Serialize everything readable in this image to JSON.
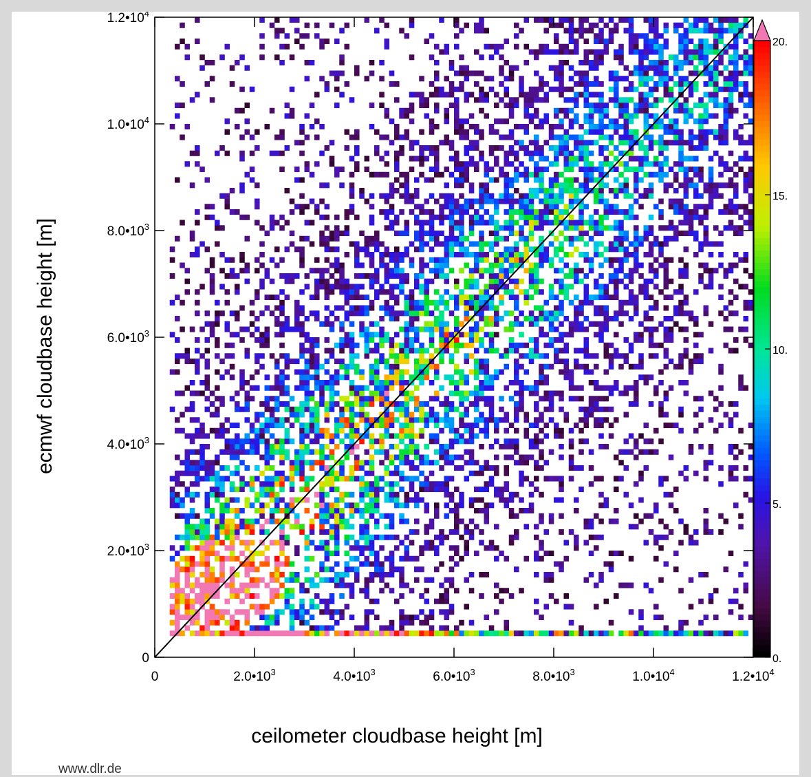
{
  "chart_data": {
    "type": "heatmap",
    "title": "",
    "xlabel": "ceilometer cloudbase height [m]",
    "ylabel": "ecmwf cloudbase height [m]",
    "xlim": [
      0,
      12000
    ],
    "ylim": [
      0,
      12000
    ],
    "x_ticks": [
      {
        "value": 0,
        "label": "0",
        "mant": "",
        "exp": ""
      },
      {
        "value": 2000,
        "label": "2.0•10³",
        "mant": "2.0•10",
        "exp": "3"
      },
      {
        "value": 4000,
        "label": "4.0•10³",
        "mant": "4.0•10",
        "exp": "3"
      },
      {
        "value": 6000,
        "label": "6.0•10³",
        "mant": "6.0•10",
        "exp": "3"
      },
      {
        "value": 8000,
        "label": "8.0•10³",
        "mant": "8.0•10",
        "exp": "3"
      },
      {
        "value": 10000,
        "label": "1.0•10⁴",
        "mant": "1.0•10",
        "exp": "4"
      },
      {
        "value": 12000,
        "label": "1.2•10⁴",
        "mant": "1.2•10",
        "exp": "4"
      }
    ],
    "y_ticks": [
      {
        "value": 0,
        "label": "0",
        "mant": "",
        "exp": ""
      },
      {
        "value": 2000,
        "label": "2.0•10³",
        "mant": "2.0•10",
        "exp": "3"
      },
      {
        "value": 4000,
        "label": "4.0•10³",
        "mant": "4.0•10",
        "exp": "3"
      },
      {
        "value": 6000,
        "label": "6.0•10³",
        "mant": "6.0•10",
        "exp": "3"
      },
      {
        "value": 8000,
        "label": "8.0•10³",
        "mant": "8.0•10",
        "exp": "3"
      },
      {
        "value": 10000,
        "label": "1.0•10⁴",
        "mant": "1.0•10",
        "exp": "4"
      },
      {
        "value": 12000,
        "label": "1.2•10⁴",
        "mant": "1.2•10",
        "exp": "4"
      }
    ],
    "bin_size": 100,
    "colorbar": {
      "min": 0,
      "max": 20,
      "ticks": [
        {
          "value": 0,
          "label": "0."
        },
        {
          "value": 5,
          "label": "5."
        },
        {
          "value": 10,
          "label": "10."
        },
        {
          "value": 15,
          "label": "15."
        },
        {
          "value": 20,
          "label": "20."
        }
      ],
      "overflow_color": "#f278b4"
    },
    "reference_line": "1:1 diagonal",
    "grid": false,
    "legend": "colorbar-right"
  },
  "footer": {
    "site": "www.dlr.de"
  }
}
